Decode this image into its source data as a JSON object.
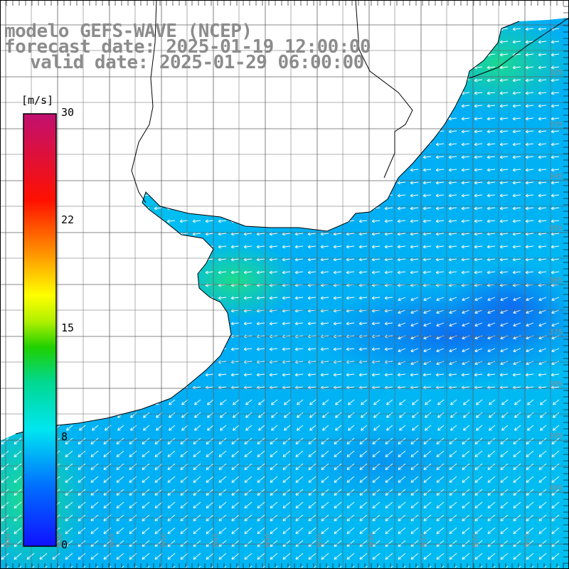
{
  "title": {
    "model": "modelo GEFS-WAVE (NCEP)",
    "forecast": "forecast date: 2025-01-19 12:00:00",
    "valid": "valid date: 2025-01-29 06:00:00"
  },
  "colorbar": {
    "unit": "[m/s]",
    "ticks": [
      {
        "label": "30",
        "value": 30
      },
      {
        "label": "22",
        "value": 22
      },
      {
        "label": "15",
        "value": 15
      },
      {
        "label": "8",
        "value": 8
      },
      {
        "label": "0",
        "value": 0
      }
    ],
    "range": [
      0,
      30
    ],
    "colors": [
      "#1010ff",
      "#00a0ff",
      "#00e6f0",
      "#00d080",
      "#30e000",
      "#c0f000",
      "#ffff00",
      "#ff9000",
      "#ff2000",
      "#e00060",
      "#c01070"
    ]
  },
  "latitude_labels": [
    "325",
    "335",
    "345",
    "355",
    "365",
    "375",
    "385",
    "395",
    "405"
  ],
  "longitude_labels": [
    "W65",
    "W60",
    "W55",
    "W50",
    "W45",
    "W40",
    "W35",
    "W30",
    "W25",
    "W20",
    "W15"
  ],
  "colors": {
    "title": "#8c8c8c",
    "land": "#ffffff",
    "grid": "#606060",
    "coast": "#000000",
    "arrow": "#ffffff"
  }
}
